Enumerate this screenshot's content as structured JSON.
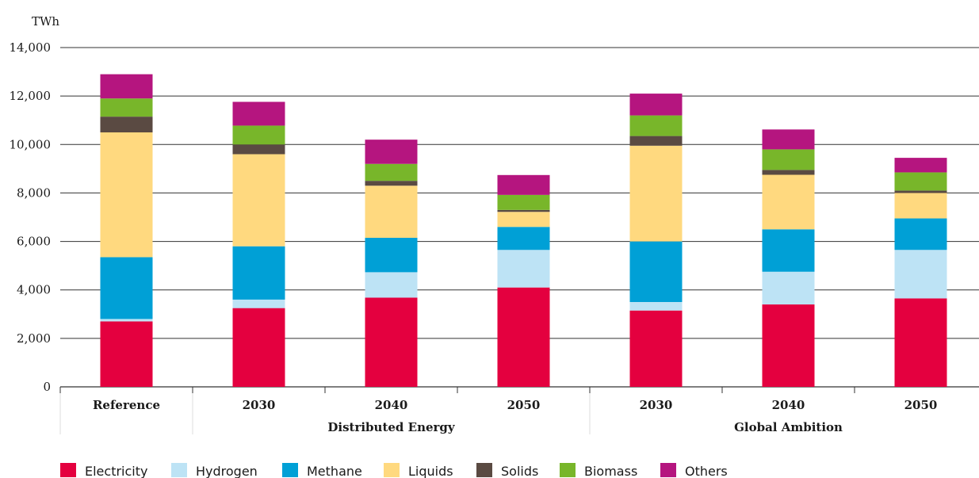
{
  "chart_data": {
    "type": "bar",
    "stacked": true,
    "ylabel": "TWh",
    "ylim": [
      0,
      14000
    ],
    "yticks": [
      "0",
      "2,000",
      "4,000",
      "6,000",
      "8,000",
      "10,000",
      "12,000",
      "14,000"
    ],
    "ytick_values": [
      0,
      2000,
      4000,
      6000,
      8000,
      10000,
      12000,
      14000
    ],
    "grid": true,
    "legend_position": "bottom",
    "categories": [
      "Reference",
      "2030",
      "2040",
      "2050",
      "2030",
      "2040",
      "2050"
    ],
    "groups": [
      {
        "label": "",
        "categories": [
          "Reference"
        ]
      },
      {
        "label": "Distributed Energy",
        "categories": [
          "2030",
          "2040",
          "2050"
        ]
      },
      {
        "label": "Global Ambition",
        "categories": [
          "2030",
          "2040",
          "2050"
        ]
      }
    ],
    "series": [
      {
        "name": "Electricity",
        "color": "#e4003f",
        "values": [
          2700,
          3250,
          3680,
          4100,
          3150,
          3400,
          3650
        ]
      },
      {
        "name": "Hydrogen",
        "color": "#bde3f5",
        "values": [
          100,
          350,
          1050,
          1550,
          350,
          1350,
          2000
        ]
      },
      {
        "name": "Methane",
        "color": "#00a0d6",
        "values": [
          2550,
          2200,
          1420,
          950,
          2500,
          1750,
          1300
        ]
      },
      {
        "name": "Liquids",
        "color": "#ffd97f",
        "values": [
          5150,
          3800,
          2150,
          620,
          3950,
          2250,
          1050
        ]
      },
      {
        "name": "Solids",
        "color": "#5a4a42",
        "values": [
          650,
          400,
          200,
          80,
          400,
          200,
          100
        ]
      },
      {
        "name": "Biomass",
        "color": "#78b62a",
        "values": [
          750,
          780,
          700,
          620,
          850,
          850,
          750
        ]
      },
      {
        "name": "Others",
        "color": "#b5157f",
        "values": [
          1000,
          980,
          1000,
          820,
          900,
          820,
          600
        ]
      }
    ]
  }
}
